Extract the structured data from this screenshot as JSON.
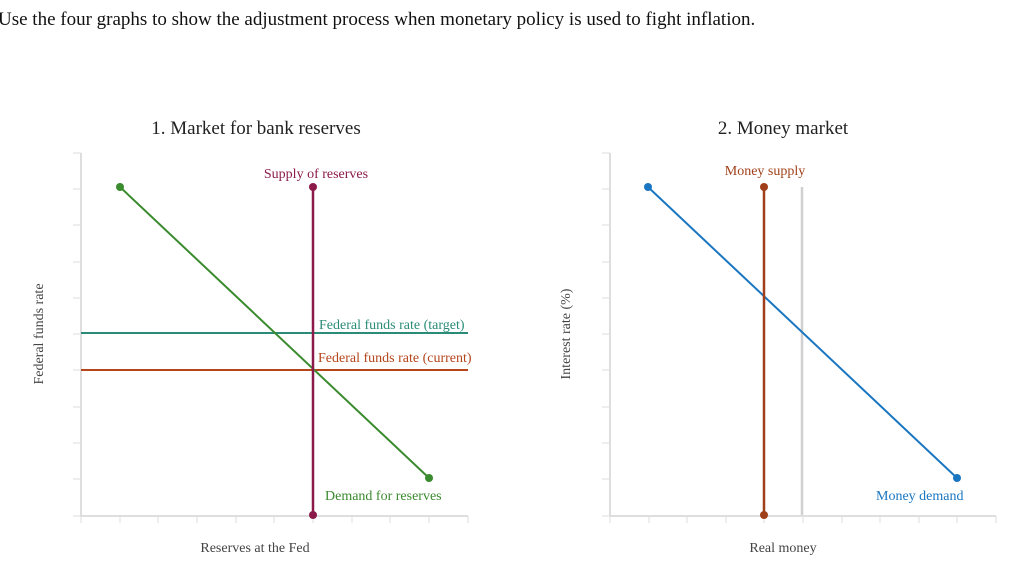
{
  "instruction": "Use the four graphs to show the adjustment process when monetary policy is used to fight inflation.",
  "colors": {
    "supply_reserves": "#8B1A4A",
    "demand_reserves": "#3A8A2E",
    "ffr_target": "#2A8C78",
    "ffr_current": "#B5451B",
    "money_supply": "#A0401A",
    "money_demand": "#1A76C0",
    "guide": "#D0D0D0",
    "axis": "#D4D4D4"
  },
  "graph1": {
    "title": "1. Market for bank reserves",
    "xlabel": "Reserves at the Fed",
    "ylabel": "Federal funds rate",
    "labels": {
      "supply": "Supply of reserves",
      "demand": "Demand for reserves",
      "target": "Federal funds rate (target)",
      "current": "Federal funds rate (current)"
    }
  },
  "graph2": {
    "title": "2. Money market",
    "xlabel": "Real money",
    "ylabel": "Interest rate (%)",
    "labels": {
      "supply": "Money supply",
      "demand": "Money demand"
    }
  }
}
